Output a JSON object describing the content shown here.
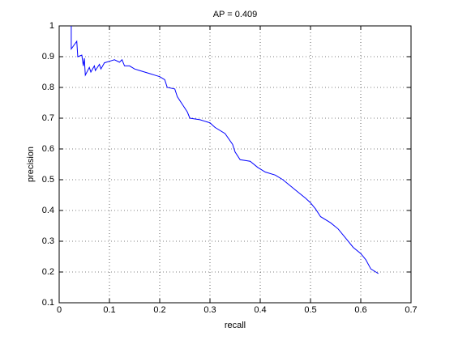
{
  "chart_data": {
    "type": "line",
    "title": "AP = 0.409",
    "x_label": "recall",
    "y_label": "precision",
    "x": [
      0.024,
      0.024,
      0.035,
      0.037,
      0.045,
      0.048,
      0.05,
      0.052,
      0.06,
      0.063,
      0.07,
      0.072,
      0.08,
      0.083,
      0.09,
      0.1,
      0.11,
      0.12,
      0.125,
      0.13,
      0.14,
      0.15,
      0.16,
      0.17,
      0.18,
      0.19,
      0.2,
      0.21,
      0.215,
      0.23,
      0.235,
      0.245,
      0.255,
      0.26,
      0.28,
      0.3,
      0.31,
      0.33,
      0.345,
      0.35,
      0.36,
      0.38,
      0.395,
      0.41,
      0.43,
      0.445,
      0.46,
      0.475,
      0.49,
      0.5,
      0.51,
      0.52,
      0.54,
      0.555,
      0.57,
      0.585,
      0.6,
      0.61,
      0.62,
      0.63,
      0.635
    ],
    "values": [
      1.0,
      0.925,
      0.95,
      0.9,
      0.905,
      0.87,
      0.895,
      0.84,
      0.865,
      0.85,
      0.87,
      0.855,
      0.875,
      0.86,
      0.88,
      0.885,
      0.89,
      0.882,
      0.89,
      0.87,
      0.87,
      0.86,
      0.855,
      0.85,
      0.845,
      0.84,
      0.835,
      0.825,
      0.8,
      0.795,
      0.77,
      0.745,
      0.72,
      0.7,
      0.695,
      0.685,
      0.67,
      0.65,
      0.615,
      0.59,
      0.565,
      0.56,
      0.54,
      0.525,
      0.515,
      0.5,
      0.48,
      0.46,
      0.44,
      0.425,
      0.405,
      0.38,
      0.36,
      0.34,
      0.31,
      0.28,
      0.26,
      0.24,
      0.21,
      0.2,
      0.195
    ],
    "color": "#0000ff",
    "xlim": [
      0,
      0.7
    ],
    "xticks": [
      0,
      0.1,
      0.2,
      0.3,
      0.4,
      0.5,
      0.6,
      0.7
    ],
    "ylim": [
      0.1,
      1
    ],
    "yticks": [
      0.1,
      0.2,
      0.3,
      0.4,
      0.5,
      0.6,
      0.7,
      0.8,
      0.9,
      1
    ],
    "grid": true
  }
}
